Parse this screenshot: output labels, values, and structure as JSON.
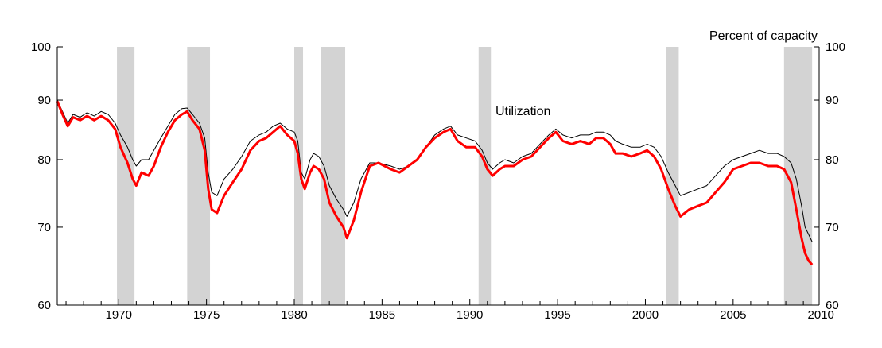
{
  "chart_data": {
    "type": "line",
    "title": "",
    "unit_label": "Percent of capacity",
    "annotation": "Utilization",
    "y_scale": "log",
    "ylim": [
      60,
      100
    ],
    "xlim": [
      1966.5,
      2009.9
    ],
    "grid": false,
    "y_ticks": [
      60,
      70,
      80,
      90,
      100
    ],
    "y_tick_labels": [
      "60",
      "70",
      "80",
      "90",
      "100"
    ],
    "x_ticks": [
      1970,
      1975,
      1980,
      1985,
      1990,
      1995,
      2000,
      2005,
      2010
    ],
    "x_tick_labels": [
      "1970",
      "1975",
      "1980",
      "1985",
      "1990",
      "1995",
      "2000",
      "2005",
      "2010"
    ],
    "recessions": [
      [
        1969.9,
        1970.9
      ],
      [
        1973.9,
        1975.2
      ],
      [
        1980.0,
        1980.5
      ],
      [
        1981.5,
        1982.9
      ],
      [
        1990.5,
        1991.2
      ],
      [
        2001.2,
        2001.9
      ],
      [
        2007.9,
        2009.5
      ]
    ],
    "series": [
      {
        "key": "thin",
        "color": "#000000",
        "points": [
          [
            1966.5,
            90.0
          ],
          [
            1966.8,
            88.0
          ],
          [
            1967.1,
            86.0
          ],
          [
            1967.4,
            87.5
          ],
          [
            1967.8,
            87.0
          ],
          [
            1968.2,
            87.8
          ],
          [
            1968.6,
            87.2
          ],
          [
            1969.0,
            88.0
          ],
          [
            1969.4,
            87.5
          ],
          [
            1969.8,
            86.0
          ],
          [
            1970.1,
            84.0
          ],
          [
            1970.5,
            82.0
          ],
          [
            1970.8,
            80.0
          ],
          [
            1971.0,
            79.0
          ],
          [
            1971.3,
            80.0
          ],
          [
            1971.7,
            80.0
          ],
          [
            1972.0,
            81.5
          ],
          [
            1972.4,
            83.5
          ],
          [
            1972.8,
            85.5
          ],
          [
            1973.2,
            87.5
          ],
          [
            1973.6,
            88.5
          ],
          [
            1973.9,
            88.6
          ],
          [
            1974.2,
            87.5
          ],
          [
            1974.6,
            86.0
          ],
          [
            1974.9,
            83.5
          ],
          [
            1975.1,
            78.0
          ],
          [
            1975.3,
            75.0
          ],
          [
            1975.6,
            74.5
          ],
          [
            1976.0,
            77.0
          ],
          [
            1976.5,
            78.5
          ],
          [
            1977.0,
            80.5
          ],
          [
            1977.5,
            83.0
          ],
          [
            1978.0,
            84.0
          ],
          [
            1978.4,
            84.5
          ],
          [
            1978.8,
            85.5
          ],
          [
            1979.2,
            86.0
          ],
          [
            1979.6,
            85.0
          ],
          [
            1980.0,
            84.5
          ],
          [
            1980.2,
            83.0
          ],
          [
            1980.4,
            78.0
          ],
          [
            1980.6,
            77.0
          ],
          [
            1980.9,
            80.0
          ],
          [
            1981.1,
            81.0
          ],
          [
            1981.4,
            80.5
          ],
          [
            1981.7,
            79.0
          ],
          [
            1982.0,
            76.0
          ],
          [
            1982.4,
            74.0
          ],
          [
            1982.8,
            72.5
          ],
          [
            1983.0,
            71.5
          ],
          [
            1983.4,
            73.5
          ],
          [
            1983.8,
            77.0
          ],
          [
            1984.3,
            79.5
          ],
          [
            1984.8,
            79.5
          ],
          [
            1985.5,
            79.0
          ],
          [
            1986.0,
            78.5
          ],
          [
            1986.5,
            79.0
          ],
          [
            1987.0,
            80.0
          ],
          [
            1987.5,
            82.0
          ],
          [
            1988.0,
            84.0
          ],
          [
            1988.5,
            85.0
          ],
          [
            1988.9,
            85.5
          ],
          [
            1989.3,
            84.0
          ],
          [
            1989.8,
            83.5
          ],
          [
            1990.3,
            83.0
          ],
          [
            1990.7,
            81.5
          ],
          [
            1991.0,
            79.5
          ],
          [
            1991.3,
            78.5
          ],
          [
            1991.7,
            79.5
          ],
          [
            1992.0,
            80.0
          ],
          [
            1992.5,
            79.5
          ],
          [
            1993.0,
            80.5
          ],
          [
            1993.5,
            81.0
          ],
          [
            1994.0,
            82.5
          ],
          [
            1994.5,
            84.0
          ],
          [
            1994.9,
            85.0
          ],
          [
            1995.3,
            84.0
          ],
          [
            1995.8,
            83.5
          ],
          [
            1996.3,
            84.0
          ],
          [
            1996.8,
            84.0
          ],
          [
            1997.2,
            84.5
          ],
          [
            1997.6,
            84.5
          ],
          [
            1998.0,
            84.0
          ],
          [
            1998.3,
            83.0
          ],
          [
            1998.7,
            82.5
          ],
          [
            1999.2,
            82.0
          ],
          [
            1999.7,
            82.0
          ],
          [
            2000.1,
            82.5
          ],
          [
            2000.5,
            82.0
          ],
          [
            2000.9,
            80.5
          ],
          [
            2001.3,
            78.0
          ],
          [
            2001.7,
            76.0
          ],
          [
            2002.0,
            74.5
          ],
          [
            2002.5,
            75.0
          ],
          [
            2003.0,
            75.5
          ],
          [
            2003.5,
            76.0
          ],
          [
            2004.0,
            77.5
          ],
          [
            2004.5,
            79.0
          ],
          [
            2005.0,
            80.0
          ],
          [
            2005.5,
            80.5
          ],
          [
            2006.0,
            81.0
          ],
          [
            2006.5,
            81.5
          ],
          [
            2007.0,
            81.0
          ],
          [
            2007.5,
            81.0
          ],
          [
            2007.9,
            80.5
          ],
          [
            2008.3,
            79.5
          ],
          [
            2008.6,
            77.0
          ],
          [
            2008.9,
            73.0
          ],
          [
            2009.1,
            70.0
          ],
          [
            2009.3,
            69.0
          ],
          [
            2009.5,
            68.0
          ]
        ]
      },
      {
        "key": "red",
        "color": "#ff0000",
        "points": [
          [
            1966.5,
            89.8
          ],
          [
            1966.8,
            87.5
          ],
          [
            1967.1,
            85.5
          ],
          [
            1967.4,
            87.0
          ],
          [
            1967.8,
            86.5
          ],
          [
            1968.2,
            87.2
          ],
          [
            1968.6,
            86.5
          ],
          [
            1969.0,
            87.2
          ],
          [
            1969.4,
            86.5
          ],
          [
            1969.8,
            85.0
          ],
          [
            1970.1,
            82.0
          ],
          [
            1970.5,
            79.5
          ],
          [
            1970.8,
            77.0
          ],
          [
            1971.0,
            76.0
          ],
          [
            1971.3,
            78.0
          ],
          [
            1971.7,
            77.5
          ],
          [
            1972.0,
            79.0
          ],
          [
            1972.4,
            82.0
          ],
          [
            1972.8,
            84.5
          ],
          [
            1973.2,
            86.5
          ],
          [
            1973.6,
            87.5
          ],
          [
            1973.9,
            88.0
          ],
          [
            1974.2,
            86.5
          ],
          [
            1974.6,
            85.0
          ],
          [
            1974.9,
            81.5
          ],
          [
            1975.1,
            75.5
          ],
          [
            1975.3,
            72.5
          ],
          [
            1975.6,
            72.0
          ],
          [
            1976.0,
            74.5
          ],
          [
            1976.5,
            76.5
          ],
          [
            1977.0,
            78.5
          ],
          [
            1977.5,
            81.5
          ],
          [
            1978.0,
            83.0
          ],
          [
            1978.4,
            83.5
          ],
          [
            1978.8,
            84.5
          ],
          [
            1979.2,
            85.5
          ],
          [
            1979.6,
            84.0
          ],
          [
            1980.0,
            83.0
          ],
          [
            1980.2,
            81.0
          ],
          [
            1980.4,
            77.0
          ],
          [
            1980.6,
            75.5
          ],
          [
            1980.9,
            78.0
          ],
          [
            1981.1,
            79.0
          ],
          [
            1981.4,
            78.5
          ],
          [
            1981.7,
            77.0
          ],
          [
            1982.0,
            73.5
          ],
          [
            1982.4,
            71.5
          ],
          [
            1982.8,
            70.0
          ],
          [
            1983.0,
            68.5
          ],
          [
            1983.4,
            71.0
          ],
          [
            1983.8,
            75.0
          ],
          [
            1984.3,
            79.0
          ],
          [
            1984.8,
            79.5
          ],
          [
            1985.5,
            78.5
          ],
          [
            1986.0,
            78.0
          ],
          [
            1986.5,
            79.0
          ],
          [
            1987.0,
            80.0
          ],
          [
            1987.5,
            82.0
          ],
          [
            1988.0,
            83.5
          ],
          [
            1988.5,
            84.5
          ],
          [
            1988.9,
            85.0
          ],
          [
            1989.3,
            83.0
          ],
          [
            1989.8,
            82.0
          ],
          [
            1990.3,
            82.0
          ],
          [
            1990.7,
            80.5
          ],
          [
            1991.0,
            78.5
          ],
          [
            1991.3,
            77.5
          ],
          [
            1991.7,
            78.5
          ],
          [
            1992.0,
            79.0
          ],
          [
            1992.5,
            79.0
          ],
          [
            1993.0,
            80.0
          ],
          [
            1993.5,
            80.5
          ],
          [
            1994.0,
            82.0
          ],
          [
            1994.5,
            83.5
          ],
          [
            1994.9,
            84.5
          ],
          [
            1995.3,
            83.0
          ],
          [
            1995.8,
            82.5
          ],
          [
            1996.3,
            83.0
          ],
          [
            1996.8,
            82.5
          ],
          [
            1997.2,
            83.5
          ],
          [
            1997.6,
            83.5
          ],
          [
            1998.0,
            82.5
          ],
          [
            1998.3,
            81.0
          ],
          [
            1998.7,
            81.0
          ],
          [
            1999.2,
            80.5
          ],
          [
            1999.7,
            81.0
          ],
          [
            2000.1,
            81.5
          ],
          [
            2000.5,
            80.5
          ],
          [
            2000.9,
            78.5
          ],
          [
            2001.3,
            75.5
          ],
          [
            2001.7,
            73.0
          ],
          [
            2002.0,
            71.5
          ],
          [
            2002.5,
            72.5
          ],
          [
            2003.0,
            73.0
          ],
          [
            2003.5,
            73.5
          ],
          [
            2004.0,
            75.0
          ],
          [
            2004.5,
            76.5
          ],
          [
            2005.0,
            78.5
          ],
          [
            2005.5,
            79.0
          ],
          [
            2006.0,
            79.5
          ],
          [
            2006.5,
            79.5
          ],
          [
            2007.0,
            79.0
          ],
          [
            2007.5,
            79.0
          ],
          [
            2007.9,
            78.5
          ],
          [
            2008.3,
            76.5
          ],
          [
            2008.6,
            72.5
          ],
          [
            2008.9,
            68.5
          ],
          [
            2009.1,
            66.5
          ],
          [
            2009.3,
            65.5
          ],
          [
            2009.5,
            65.0
          ]
        ]
      }
    ]
  }
}
